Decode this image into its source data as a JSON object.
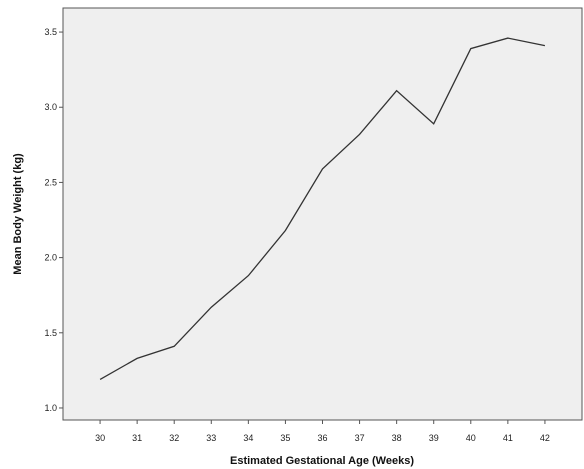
{
  "chart_data": {
    "type": "line",
    "title": "",
    "xlabel": "Estimated Gestational Age (Weeks)",
    "ylabel": "Mean Body Weight (kg)",
    "x": [
      30,
      31,
      32,
      33,
      34,
      35,
      36,
      37,
      38,
      39,
      40,
      41,
      42
    ],
    "x_tick_labels": [
      "30",
      "31",
      "32",
      "33",
      "34",
      "35",
      "36",
      "37",
      "38",
      "39",
      "40",
      "41",
      "42"
    ],
    "y_ticks": [
      1.0,
      1.5,
      2.0,
      2.5,
      3.0,
      3.5
    ],
    "y_tick_labels": [
      "1.0",
      "1.5",
      "2.0",
      "2.5",
      "3.0",
      "3.5"
    ],
    "series": [
      {
        "values": [
          1.19,
          1.33,
          1.41,
          1.67,
          1.88,
          2.18,
          2.59,
          2.82,
          3.11,
          2.89,
          3.39,
          3.46,
          3.41
        ]
      }
    ],
    "xlim": [
      29,
      43
    ],
    "ylim": [
      0.92,
      3.66
    ],
    "grid": false,
    "legend": "none",
    "colors": {
      "plot_background": "#efefef",
      "line": "#333333",
      "axis": "#555555"
    }
  }
}
